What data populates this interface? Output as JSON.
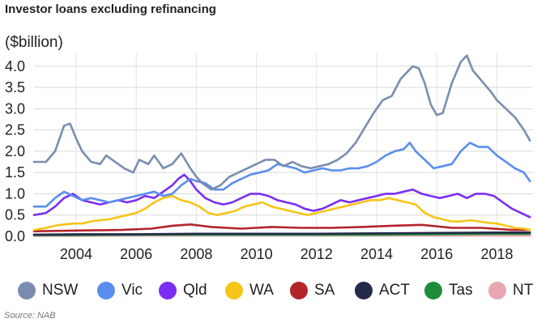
{
  "title": "Investor loans excluding refinancing",
  "source": "Source: NAB",
  "chart_data": {
    "type": "line",
    "ylabel": "($billion)",
    "xlim": [
      2002.6,
      2019.2
    ],
    "ylim": [
      0,
      4.3
    ],
    "yticks": [
      "0.0",
      "0.5",
      "1.0",
      "1.5",
      "2.0",
      "2.5",
      "3.0",
      "3.5",
      "4.0"
    ],
    "xticks": [
      "2004",
      "2006",
      "2008",
      "2010",
      "2012",
      "2014",
      "2016",
      "2018"
    ],
    "grid": true,
    "legend": "bottom",
    "series": [
      {
        "name": "NSW",
        "color": "#7a8db0",
        "x": [
          2002.6,
          2003.0,
          2003.3,
          2003.6,
          2003.8,
          2004.0,
          2004.2,
          2004.5,
          2004.8,
          2005.0,
          2005.3,
          2005.6,
          2005.9,
          2006.1,
          2006.4,
          2006.6,
          2006.9,
          2007.2,
          2007.5,
          2007.8,
          2008.0,
          2008.2,
          2008.5,
          2008.8,
          2009.1,
          2009.4,
          2009.7,
          2010.0,
          2010.3,
          2010.6,
          2010.9,
          2011.2,
          2011.5,
          2011.8,
          2012.1,
          2012.4,
          2012.7,
          2013.0,
          2013.3,
          2013.6,
          2013.9,
          2014.2,
          2014.5,
          2014.8,
          2015.0,
          2015.2,
          2015.4,
          2015.6,
          2015.8,
          2016.0,
          2016.2,
          2016.5,
          2016.8,
          2017.0,
          2017.2,
          2017.5,
          2017.8,
          2018.0,
          2018.3,
          2018.6,
          2018.9,
          2019.1
        ],
        "y": [
          1.75,
          1.75,
          2.0,
          2.6,
          2.65,
          2.3,
          2.0,
          1.75,
          1.7,
          1.9,
          1.75,
          1.6,
          1.5,
          1.8,
          1.7,
          1.9,
          1.6,
          1.7,
          1.95,
          1.6,
          1.4,
          1.25,
          1.1,
          1.2,
          1.4,
          1.5,
          1.6,
          1.7,
          1.8,
          1.8,
          1.65,
          1.75,
          1.65,
          1.6,
          1.65,
          1.7,
          1.8,
          1.95,
          2.2,
          2.55,
          2.9,
          3.2,
          3.3,
          3.7,
          3.85,
          4.0,
          3.95,
          3.6,
          3.1,
          2.85,
          2.9,
          3.6,
          4.1,
          4.25,
          3.9,
          3.65,
          3.4,
          3.2,
          3.0,
          2.8,
          2.5,
          2.25
        ]
      },
      {
        "name": "Vic",
        "color": "#5b8def",
        "x": [
          2002.6,
          2003.0,
          2003.3,
          2003.6,
          2003.9,
          2004.2,
          2004.5,
          2004.8,
          2005.1,
          2005.4,
          2005.7,
          2006.0,
          2006.3,
          2006.6,
          2006.9,
          2007.2,
          2007.5,
          2007.8,
          2008.0,
          2008.3,
          2008.6,
          2008.9,
          2009.2,
          2009.5,
          2009.8,
          2010.1,
          2010.4,
          2010.7,
          2011.0,
          2011.3,
          2011.6,
          2011.9,
          2012.2,
          2012.5,
          2012.8,
          2013.1,
          2013.4,
          2013.7,
          2014.0,
          2014.3,
          2014.6,
          2014.9,
          2015.1,
          2015.3,
          2015.6,
          2015.9,
          2016.2,
          2016.5,
          2016.8,
          2017.1,
          2017.4,
          2017.7,
          2018.0,
          2018.3,
          2018.6,
          2018.9,
          2019.1
        ],
        "y": [
          0.7,
          0.7,
          0.9,
          1.05,
          0.95,
          0.85,
          0.9,
          0.85,
          0.8,
          0.85,
          0.9,
          0.95,
          1.0,
          1.05,
          0.95,
          1.0,
          1.2,
          1.35,
          1.3,
          1.25,
          1.1,
          1.1,
          1.25,
          1.35,
          1.45,
          1.5,
          1.55,
          1.7,
          1.65,
          1.6,
          1.5,
          1.55,
          1.6,
          1.55,
          1.55,
          1.6,
          1.6,
          1.65,
          1.75,
          1.9,
          2.0,
          2.05,
          2.2,
          2.0,
          1.8,
          1.6,
          1.65,
          1.7,
          2.0,
          2.2,
          2.1,
          2.1,
          1.9,
          1.75,
          1.6,
          1.5,
          1.3
        ]
      },
      {
        "name": "Qld",
        "color": "#7b2ff2",
        "x": [
          2002.6,
          2003.0,
          2003.3,
          2003.6,
          2003.9,
          2004.2,
          2004.5,
          2004.8,
          2005.1,
          2005.4,
          2005.7,
          2006.0,
          2006.3,
          2006.6,
          2006.9,
          2007.2,
          2007.4,
          2007.6,
          2007.8,
          2008.0,
          2008.3,
          2008.6,
          2008.9,
          2009.2,
          2009.5,
          2009.8,
          2010.1,
          2010.4,
          2010.7,
          2011.0,
          2011.3,
          2011.6,
          2011.9,
          2012.2,
          2012.5,
          2012.8,
          2013.1,
          2013.4,
          2013.7,
          2014.0,
          2014.3,
          2014.6,
          2014.9,
          2015.2,
          2015.5,
          2015.8,
          2016.1,
          2016.4,
          2016.7,
          2017.0,
          2017.3,
          2017.6,
          2017.9,
          2018.2,
          2018.5,
          2018.8,
          2019.1
        ],
        "y": [
          0.5,
          0.55,
          0.7,
          0.9,
          1.0,
          0.85,
          0.8,
          0.75,
          0.8,
          0.85,
          0.8,
          0.85,
          0.95,
          0.9,
          1.05,
          1.2,
          1.35,
          1.45,
          1.3,
          1.1,
          0.9,
          0.8,
          0.75,
          0.8,
          0.9,
          1.0,
          1.0,
          0.95,
          0.85,
          0.8,
          0.75,
          0.65,
          0.6,
          0.65,
          0.75,
          0.85,
          0.8,
          0.85,
          0.9,
          0.95,
          1.0,
          1.0,
          1.05,
          1.1,
          1.0,
          0.95,
          0.9,
          0.95,
          1.0,
          0.9,
          1.0,
          1.0,
          0.95,
          0.8,
          0.65,
          0.55,
          0.45
        ]
      },
      {
        "name": "WA",
        "color": "#f5c518",
        "x": [
          2002.6,
          2003.0,
          2003.3,
          2003.6,
          2003.9,
          2004.2,
          2004.5,
          2004.8,
          2005.1,
          2005.4,
          2005.7,
          2006.0,
          2006.3,
          2006.6,
          2006.9,
          2007.2,
          2007.5,
          2007.8,
          2008.1,
          2008.4,
          2008.7,
          2009.0,
          2009.3,
          2009.6,
          2009.9,
          2010.2,
          2010.5,
          2010.8,
          2011.1,
          2011.4,
          2011.7,
          2012.0,
          2012.3,
          2012.6,
          2012.9,
          2013.2,
          2013.5,
          2013.8,
          2014.1,
          2014.4,
          2014.7,
          2015.0,
          2015.3,
          2015.6,
          2015.9,
          2016.2,
          2016.5,
          2016.8,
          2017.1,
          2017.4,
          2017.7,
          2018.0,
          2018.3,
          2018.6,
          2018.9,
          2019.1
        ],
        "y": [
          0.15,
          0.2,
          0.25,
          0.28,
          0.3,
          0.3,
          0.35,
          0.38,
          0.4,
          0.45,
          0.5,
          0.55,
          0.65,
          0.8,
          0.9,
          0.95,
          0.85,
          0.8,
          0.7,
          0.55,
          0.5,
          0.55,
          0.6,
          0.7,
          0.75,
          0.8,
          0.7,
          0.65,
          0.6,
          0.55,
          0.5,
          0.55,
          0.6,
          0.65,
          0.7,
          0.75,
          0.8,
          0.85,
          0.85,
          0.9,
          0.85,
          0.8,
          0.75,
          0.55,
          0.45,
          0.4,
          0.35,
          0.35,
          0.38,
          0.35,
          0.32,
          0.3,
          0.25,
          0.2,
          0.18,
          0.15
        ]
      },
      {
        "name": "SA",
        "color": "#b3242b",
        "x": [
          2002.6,
          2003.5,
          2004.5,
          2005.5,
          2006.5,
          2007.2,
          2007.8,
          2008.5,
          2009.5,
          2010.5,
          2011.5,
          2012.5,
          2013.5,
          2014.5,
          2015.5,
          2016.5,
          2017.5,
          2018.5,
          2019.1
        ],
        "y": [
          0.12,
          0.13,
          0.14,
          0.15,
          0.18,
          0.25,
          0.28,
          0.22,
          0.18,
          0.22,
          0.2,
          0.2,
          0.22,
          0.25,
          0.27,
          0.2,
          0.2,
          0.15,
          0.15
        ]
      },
      {
        "name": "ACT",
        "color": "#262a4a",
        "x": [
          2002.6,
          2004.0,
          2006.0,
          2008.0,
          2010.0,
          2012.0,
          2014.0,
          2016.0,
          2018.0,
          2019.1
        ],
        "y": [
          0.04,
          0.05,
          0.05,
          0.06,
          0.06,
          0.06,
          0.07,
          0.08,
          0.09,
          0.09
        ]
      },
      {
        "name": "Tas",
        "color": "#1e8c3a",
        "x": [
          2002.6,
          2004.0,
          2006.0,
          2008.0,
          2010.0,
          2012.0,
          2014.0,
          2016.0,
          2018.0,
          2019.1
        ],
        "y": [
          0.03,
          0.03,
          0.04,
          0.04,
          0.04,
          0.04,
          0.04,
          0.05,
          0.06,
          0.06
        ]
      },
      {
        "name": "NT",
        "color": "#e8a6b0",
        "x": [
          2002.6,
          2004.0,
          2006.0,
          2008.0,
          2010.0,
          2012.0,
          2014.0,
          2016.0,
          2018.0,
          2019.1
        ],
        "y": [
          0.01,
          0.01,
          0.02,
          0.02,
          0.02,
          0.02,
          0.02,
          0.02,
          0.02,
          0.02
        ]
      }
    ]
  }
}
